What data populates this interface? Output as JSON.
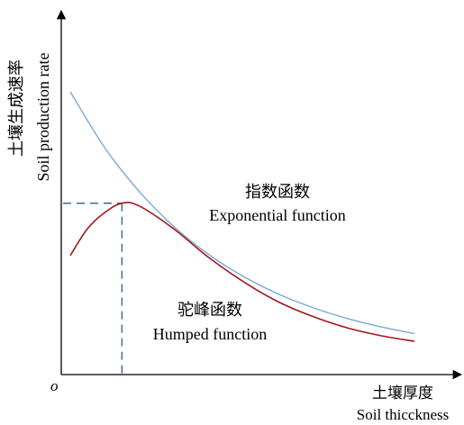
{
  "chart_data": {
    "type": "line",
    "title": "",
    "xlabel": "土壤厚度 / Soil thicckness",
    "ylabel": "土壤生成速率 / Soil production rate",
    "origin_label": "o",
    "x_axis_label_cn": "土壤厚度",
    "x_axis_label_en": "Soil thicckness",
    "y_axis_label_cn": "土壤生成速率",
    "y_axis_label_en": "Soil production rate",
    "grid": false,
    "xlim": [
      0,
      100
    ],
    "ylim": [
      0,
      100
    ],
    "series": [
      {
        "label_cn": "指数函数",
        "label_en": "Exponential function",
        "color": "#7aa9d6",
        "x": [
          0,
          10,
          20,
          30,
          40,
          50,
          60,
          70,
          80,
          90,
          100
        ],
        "y": [
          100,
          79.2,
          62.9,
          49.9,
          39.6,
          31.4,
          24.9,
          19.8,
          15.7,
          12.5,
          9.9
        ]
      },
      {
        "label_cn": "驼峰函数",
        "label_en": "Humped function",
        "color": "#a3161e",
        "x": [
          0,
          5,
          10,
          15,
          20,
          30,
          40,
          50,
          60,
          70,
          80,
          90,
          100
        ],
        "y": [
          39,
          49,
          55,
          58.5,
          57.5,
          49,
          38.5,
          29.5,
          22,
          16.5,
          12.2,
          9.2,
          7
        ]
      }
    ],
    "annotations": {
      "peak_marker": {
        "x": 15,
        "y": 58.5,
        "style": "dashed",
        "color": "#2d5f95"
      }
    }
  }
}
